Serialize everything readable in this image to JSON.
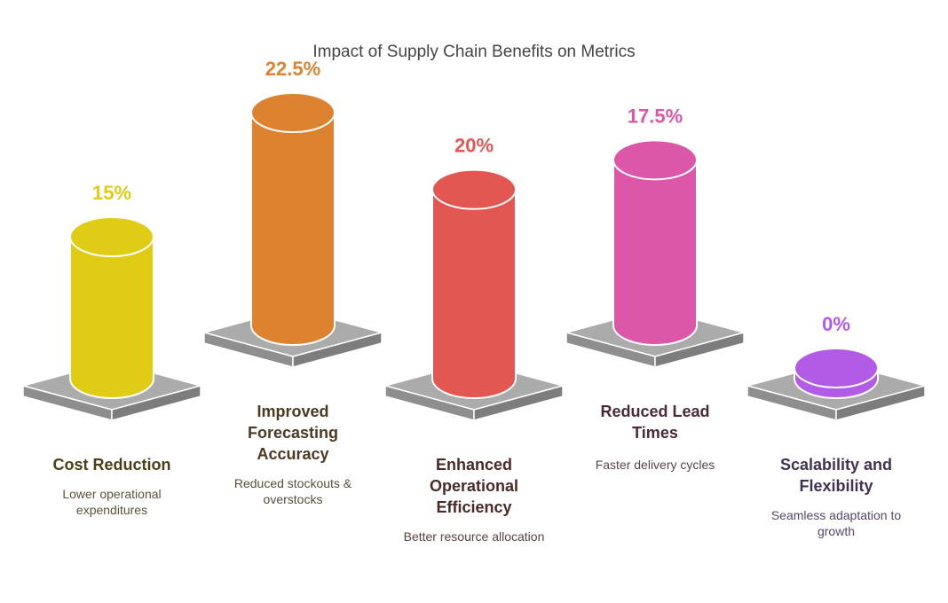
{
  "chart_data": {
    "type": "bar",
    "title": "Impact of Supply Chain Benefits on Metrics",
    "categories": [
      "Cost Reduction",
      "Improved Forecasting Accuracy",
      "Enhanced Operational Efficiency",
      "Reduced Lead Times",
      "Scalability and Flexibility"
    ],
    "values": [
      15,
      22.5,
      20,
      17.5,
      0
    ],
    "value_labels": [
      "15%",
      "22.5%",
      "20%",
      "17.5%",
      "0%"
    ],
    "descriptions": [
      "Lower operational expenditures",
      "Reduced stockouts & overstocks",
      "Better resource allocation",
      "Faster delivery cycles",
      "Seamless adaptation to growth"
    ],
    "colors": [
      "#e0cb15",
      "#dd8330",
      "#e25752",
      "#dc57a8",
      "#b15be6"
    ],
    "label_colors": [
      "#4a3f18",
      "#4a3a22",
      "#4a2a26",
      "#4a2a3a",
      "#433052"
    ],
    "desc_colors": [
      "#5a5236",
      "#5a4d3a",
      "#5a4240",
      "#5a4250",
      "#58486a"
    ],
    "xlabel": "",
    "ylabel": "",
    "ylim": [
      0,
      22.5
    ]
  }
}
